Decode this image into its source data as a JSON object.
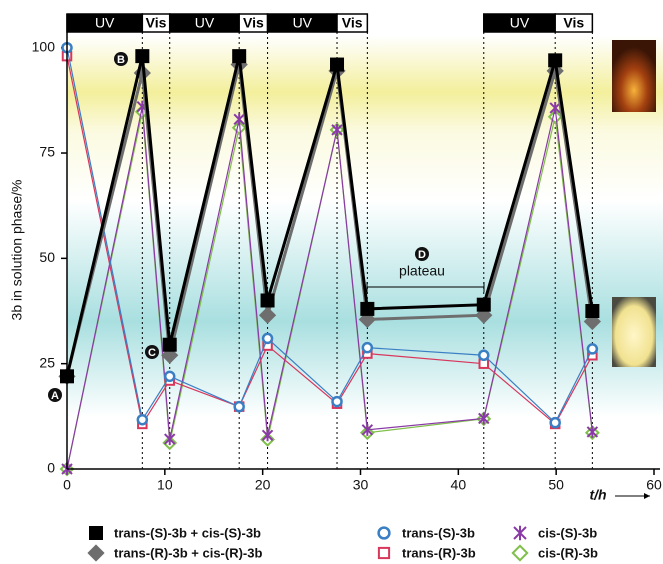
{
  "chart_data": {
    "type": "line",
    "y_label": "3b in solution phase/%",
    "x_label": "t/h",
    "xlim": [
      0,
      60
    ],
    "xticks": [
      0,
      10,
      20,
      30,
      40,
      50,
      60
    ],
    "ylim": [
      0,
      108
    ],
    "yticks": [
      0,
      25,
      50,
      75,
      100
    ],
    "x": [
      0,
      7.7,
      10.5,
      17.6,
      20.5,
      27.6,
      30.7,
      42.6,
      49.9,
      53.7
    ],
    "series": [
      {
        "name": "trans-(S)-3b + cis-(S)-3b",
        "color": "#000000",
        "marker": "square-filled",
        "values": [
          22,
          98,
          29.5,
          98,
          40,
          96,
          38,
          39,
          97,
          37.5
        ]
      },
      {
        "name": "trans-(R)-3b + cis-(R)-3b",
        "color": "#6e6e6e",
        "marker": "diamond-filled",
        "values": [
          22,
          94,
          27,
          96,
          36.5,
          94.5,
          35.5,
          36.5,
          94.5,
          35
        ]
      },
      {
        "name": "trans-(S)-3b",
        "color": "#3a7fc4",
        "marker": "circle",
        "values": [
          100,
          11.7,
          22,
          14.8,
          31,
          16,
          28.8,
          27,
          11,
          28.5
        ]
      },
      {
        "name": "trans-(R)-3b",
        "color": "#d9365c",
        "marker": "square",
        "values": [
          98,
          10.7,
          21,
          14.8,
          29.3,
          15.5,
          27.4,
          25,
          10.7,
          27
        ]
      },
      {
        "name": "cis-(S)-3b",
        "color": "#8a3aa6",
        "marker": "cross",
        "values": [
          0,
          86,
          7.1,
          83,
          8,
          80.5,
          9.3,
          12,
          85.7,
          8.8
        ]
      },
      {
        "name": "cis-(R)-3b",
        "color": "#7fbf4a",
        "marker": "diamond",
        "values": [
          0,
          84.8,
          6.2,
          81,
          7,
          80.5,
          8.6,
          11.9,
          83.6,
          8.6
        ]
      }
    ],
    "phases": [
      {
        "label": "UV",
        "from": 0,
        "to": 7.7
      },
      {
        "label": "Vis",
        "from": 7.7,
        "to": 10.5
      },
      {
        "label": "UV",
        "from": 10.5,
        "to": 17.6
      },
      {
        "label": "Vis",
        "from": 17.6,
        "to": 20.5
      },
      {
        "label": "UV",
        "from": 20.5,
        "to": 27.6
      },
      {
        "label": "Vis",
        "from": 27.6,
        "to": 30.7
      },
      {
        "label": "UV",
        "from": 42.6,
        "to": 49.9
      },
      {
        "label": "Vis",
        "from": 49.9,
        "to": 53.7
      }
    ],
    "annotations": [
      "A",
      "B",
      "C",
      "D",
      "plateau"
    ]
  }
}
